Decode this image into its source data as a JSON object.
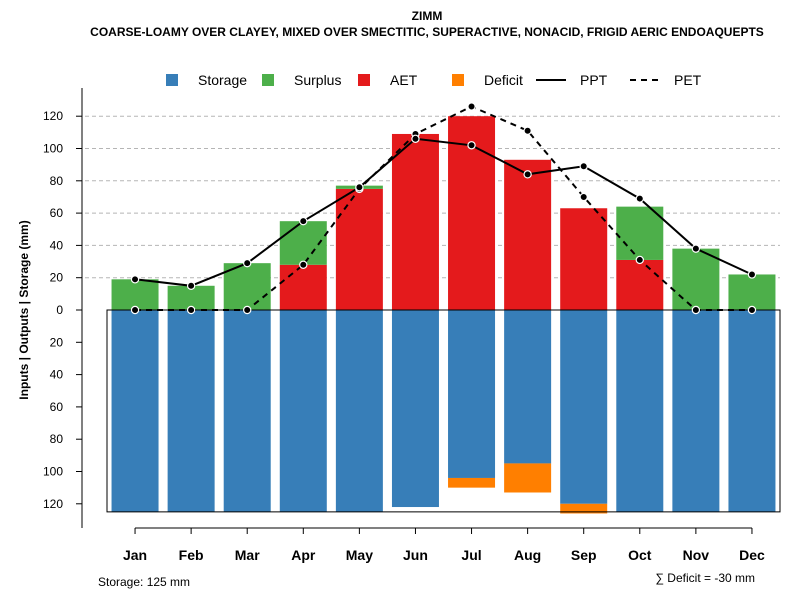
{
  "chart_data": {
    "type": "bar",
    "title": "ZIMM",
    "subtitle": "COARSE-LOAMY OVER CLAYEY, MIXED OVER SMECTITIC, SUPERACTIVE, NONACID, FRIGID AERIC ENDOAQUEPTS",
    "ylabel": "Inputs | Outputs | Storage    (mm)",
    "ylim": [
      -128,
      128
    ],
    "yticks": [
      {
        "value": 120,
        "label": "120"
      },
      {
        "value": 100,
        "label": "100"
      },
      {
        "value": 80,
        "label": "80"
      },
      {
        "value": 60,
        "label": "60"
      },
      {
        "value": 40,
        "label": "40"
      },
      {
        "value": 20,
        "label": "20"
      },
      {
        "value": 0,
        "label": "0"
      },
      {
        "value": -20,
        "label": "20"
      },
      {
        "value": -40,
        "label": "40"
      },
      {
        "value": -60,
        "label": "60"
      },
      {
        "value": -80,
        "label": "80"
      },
      {
        "value": -100,
        "label": "100"
      },
      {
        "value": -120,
        "label": "120"
      }
    ],
    "categories": [
      "Jan",
      "Feb",
      "Mar",
      "Apr",
      "May",
      "Jun",
      "Jul",
      "Aug",
      "Sep",
      "Oct",
      "Nov",
      "Dec"
    ],
    "storage_capacity": 125,
    "legend": [
      {
        "label": "Storage",
        "kind": "box",
        "color": "#377EB8"
      },
      {
        "label": "Surplus",
        "kind": "box",
        "color": "#4DAF4A"
      },
      {
        "label": "AET",
        "kind": "box",
        "color": "#E41A1C"
      },
      {
        "label": "Deficit",
        "kind": "box",
        "color": "#FF7F00"
      },
      {
        "label": "PPT",
        "kind": "solid"
      },
      {
        "label": "PET",
        "kind": "dashed"
      }
    ],
    "series": [
      {
        "name": "Storage",
        "color": "#377EB8",
        "values": [
          125,
          125,
          125,
          125,
          125,
          122,
          104,
          95,
          120,
          125,
          125,
          125
        ]
      },
      {
        "name": "Deficit",
        "color": "#FF7F00",
        "values": [
          0,
          0,
          0,
          0,
          0,
          0,
          6,
          18,
          6,
          0,
          0,
          0
        ]
      },
      {
        "name": "AET",
        "color": "#E41A1C",
        "values": [
          0,
          0,
          0,
          28,
          75,
          109,
          120,
          93,
          63,
          31,
          0,
          0
        ]
      },
      {
        "name": "Surplus",
        "color": "#4DAF4A",
        "values": [
          19,
          15,
          29,
          27,
          2,
          0,
          0,
          0,
          0,
          33,
          38,
          22
        ]
      },
      {
        "name": "PPT",
        "values": [
          19,
          15,
          29,
          55,
          76,
          106,
          102,
          84,
          89,
          69,
          38,
          22
        ]
      },
      {
        "name": "PET",
        "values": [
          0,
          0,
          0,
          28,
          75,
          109,
          126,
          111,
          70,
          31,
          0,
          0
        ]
      }
    ]
  },
  "footer": {
    "storage_note": "Storage: 125 mm",
    "deficit_note": "∑ Deficit = -30 mm"
  }
}
